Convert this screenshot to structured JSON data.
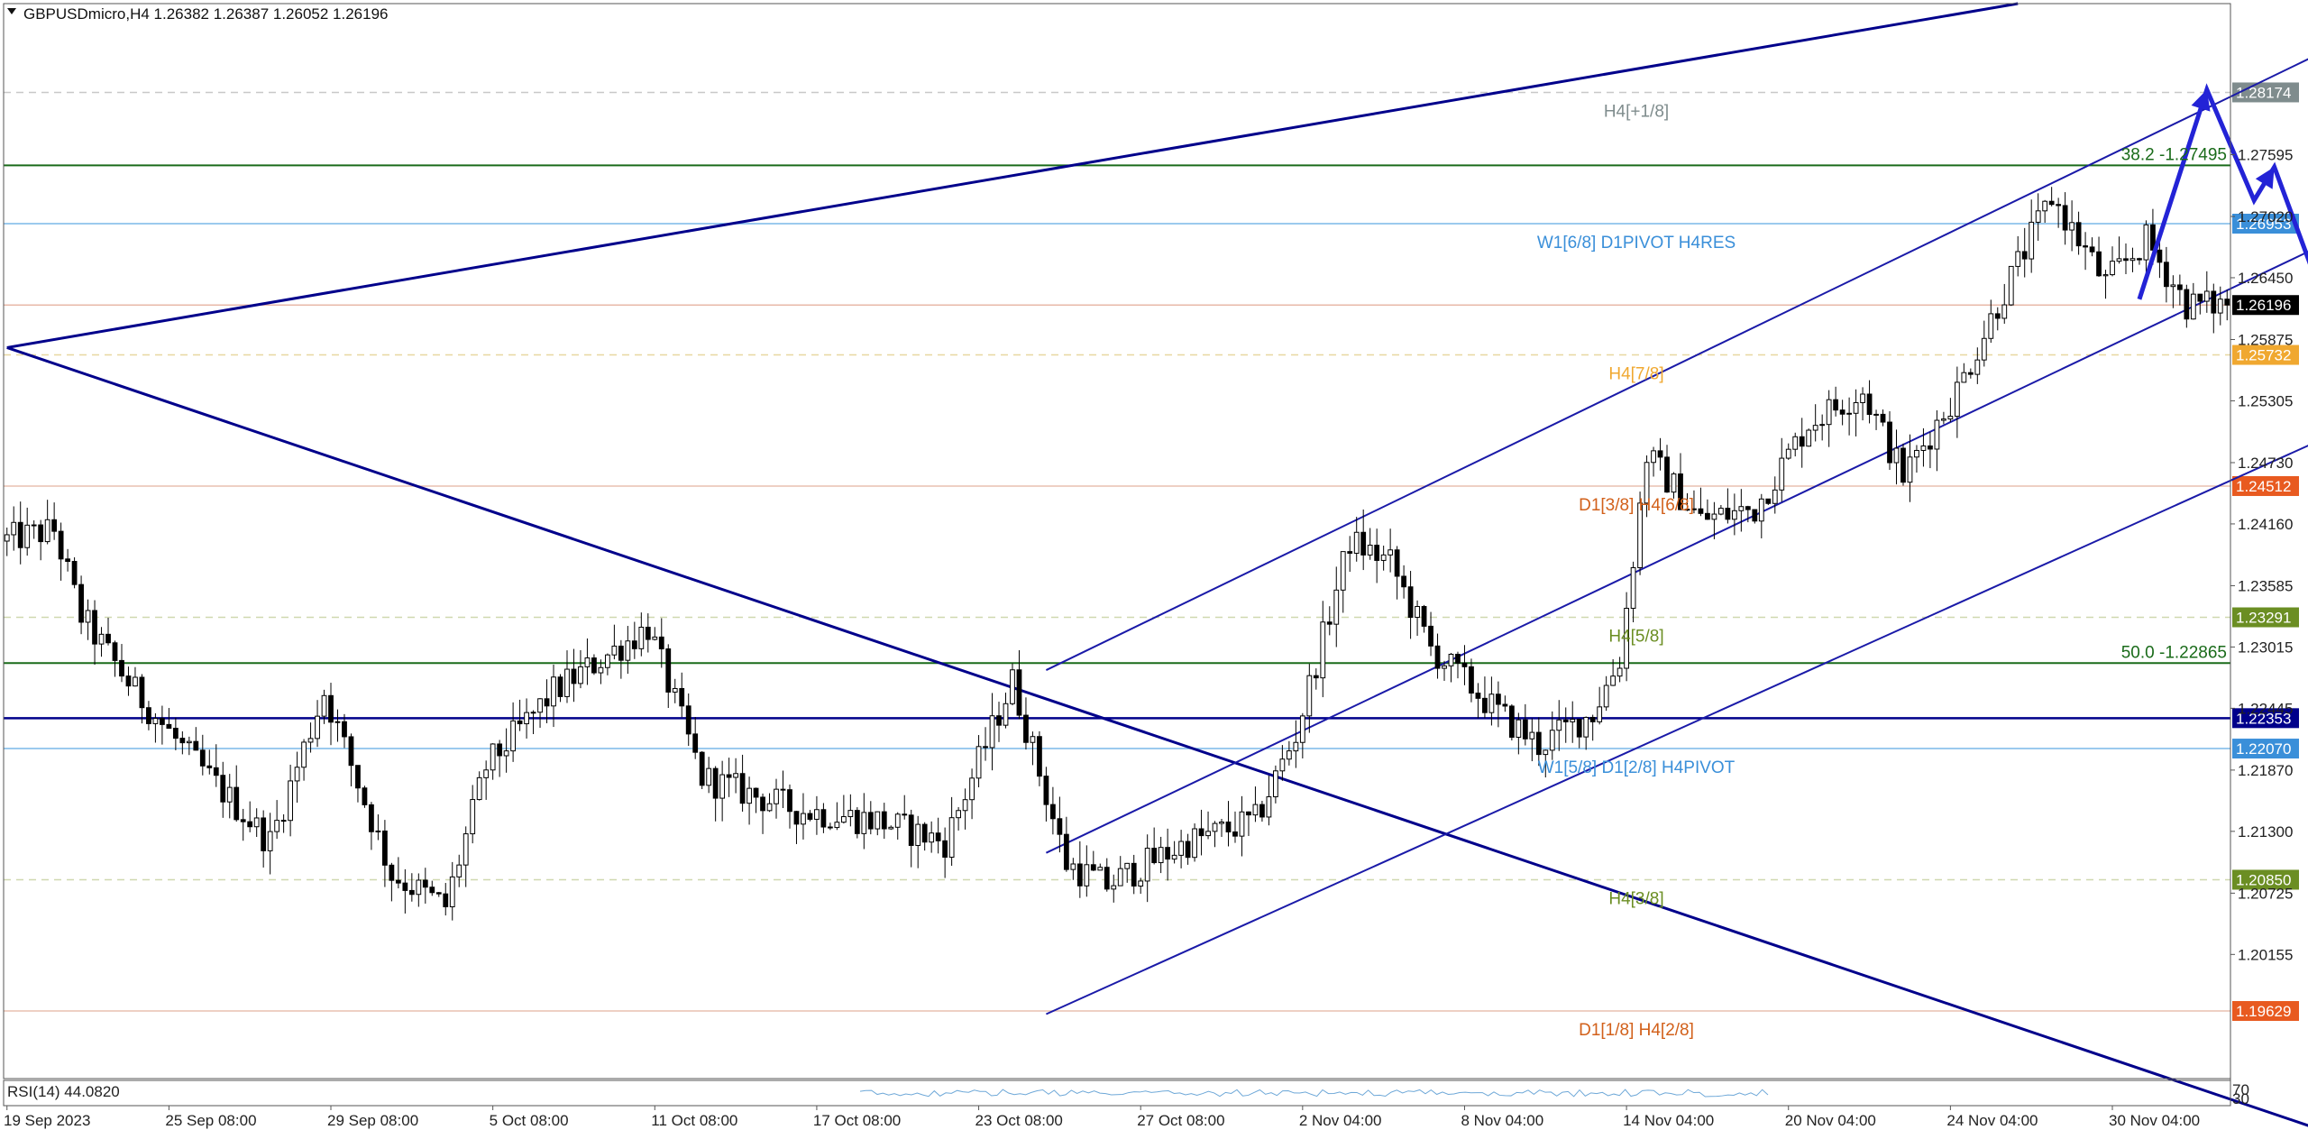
{
  "header": {
    "title": "GBPUSDmicro,H4  1.26382 1.26387 1.26052 1.26196"
  },
  "rsi": {
    "label": "RSI(14) 44.0820",
    "scale_top": "70",
    "scale_bottom": "30"
  },
  "colors": {
    "candle_up": "#ffffff",
    "candle_down": "#000000",
    "wick": "#000000",
    "trendline": "#00008b",
    "channel": "#1a1aa8",
    "arrow": "#2323d6",
    "fib": "#1a6b1a",
    "rsi_line": "#6ea8d8"
  },
  "chart_data": {
    "type": "candlestick",
    "symbol": "GBPUSDmicro",
    "timeframe": "H4",
    "ylim": [
      1.19,
      1.29
    ],
    "y_ticks": [
      "1.27595",
      "1.27020",
      "1.26450",
      "1.25875",
      "1.25305",
      "1.24730",
      "1.24160",
      "1.23585",
      "1.23015",
      "1.22445",
      "1.21870",
      "1.21300",
      "1.20725",
      "1.20155"
    ],
    "x_ticks": [
      "19 Sep 2023",
      "25 Sep 08:00",
      "29 Sep 08:00",
      "5 Oct 08:00",
      "11 Oct 08:00",
      "17 Oct 08:00",
      "23 Oct 08:00",
      "27 Oct 08:00",
      "2 Nov 04:00",
      "8 Nov 04:00",
      "14 Nov 04:00",
      "20 Nov 04:00",
      "24 Nov 04:00",
      "30 Nov 04:00"
    ],
    "x_tick_bars": [
      0,
      24,
      48,
      72,
      96,
      120,
      144,
      168,
      192,
      216,
      240,
      264,
      288,
      312
    ],
    "bars_count": 330,
    "price_path": [
      [
        0,
        1.24
      ],
      [
        8,
        1.241
      ],
      [
        12,
        1.233
      ],
      [
        20,
        1.226
      ],
      [
        28,
        1.22
      ],
      [
        40,
        1.212
      ],
      [
        48,
        1.226
      ],
      [
        58,
        1.209
      ],
      [
        66,
        1.206
      ],
      [
        72,
        1.219
      ],
      [
        82,
        1.226
      ],
      [
        96,
        1.232
      ],
      [
        104,
        1.218
      ],
      [
        118,
        1.215
      ],
      [
        130,
        1.214
      ],
      [
        140,
        1.212
      ],
      [
        150,
        1.227
      ],
      [
        158,
        1.21
      ],
      [
        164,
        1.208
      ],
      [
        176,
        1.212
      ],
      [
        186,
        1.214
      ],
      [
        192,
        1.222
      ],
      [
        200,
        1.24
      ],
      [
        206,
        1.238
      ],
      [
        212,
        1.23
      ],
      [
        222,
        1.224
      ],
      [
        228,
        1.221
      ],
      [
        236,
        1.224
      ],
      [
        240,
        1.229
      ],
      [
        244,
        1.248
      ],
      [
        252,
        1.242
      ],
      [
        260,
        1.243
      ],
      [
        268,
        1.251
      ],
      [
        276,
        1.254
      ],
      [
        282,
        1.246
      ],
      [
        290,
        1.254
      ],
      [
        296,
        1.262
      ],
      [
        304,
        1.272
      ],
      [
        312,
        1.264
      ],
      [
        318,
        1.268
      ],
      [
        324,
        1.262
      ],
      [
        329,
        1.262
      ]
    ],
    "last_price": "1.26196",
    "levels": [
      {
        "price": 1.28174,
        "tag": "1.28174",
        "tag_color": "#7f8c8d",
        "line_color": "#c8c8c8",
        "dash": true,
        "label": "H4[+1/8]",
        "label_color": "#7f8c8d"
      },
      {
        "price": 1.27495,
        "tag": "",
        "tag_color": "",
        "line_color": "#1a6b1a",
        "dash": false,
        "label": "38.2 -1.27495",
        "label_color": "#1a6b1a",
        "label_side": "right"
      },
      {
        "price": 1.26953,
        "tag": "1.26953",
        "tag_color": "#3a8fd9",
        "line_color": "#7ab8e8",
        "dash": false,
        "label": "W1[6/8] D1PIVOT H4RES",
        "label_color": "#3a8fd9"
      },
      {
        "price": 1.26196,
        "tag": "1.26196",
        "tag_color": "#000000",
        "line_color": "#e8b8a8",
        "dash": false,
        "label": "",
        "label_color": ""
      },
      {
        "price": 1.25732,
        "tag": "1.25732",
        "tag_color": "#f0a830",
        "line_color": "#e8d8a0",
        "dash": true,
        "label": "H4[7/8]",
        "label_color": "#f0a830"
      },
      {
        "price": 1.24512,
        "tag": "1.24512",
        "tag_color": "#e85a20",
        "line_color": "#e8c0b0",
        "dash": false,
        "label": "D1[3/8] H4[6/8]",
        "label_color": "#d2601a"
      },
      {
        "price": 1.23291,
        "tag": "1.23291",
        "tag_color": "#6b8e23",
        "line_color": "#cfd8b0",
        "dash": true,
        "label": "H4[5/8]",
        "label_color": "#6b8e23"
      },
      {
        "price": 1.22865,
        "tag": "",
        "tag_color": "",
        "line_color": "#1a6b1a",
        "dash": false,
        "label": "50.0 -1.22865",
        "label_color": "#1a6b1a",
        "label_side": "right"
      },
      {
        "price": 1.22353,
        "tag": "1.22353",
        "tag_color": "#00008b",
        "line_color": "#00008b",
        "dash": false,
        "label": "",
        "label_color": ""
      },
      {
        "price": 1.2207,
        "tag": "1.22070",
        "tag_color": "#3a8fd9",
        "line_color": "#7ab8e8",
        "dash": false,
        "label": "W1[5/8] D1[2/8] H4PIVOT",
        "label_color": "#3a8fd9"
      },
      {
        "price": 1.2085,
        "tag": "1.20850",
        "tag_color": "#6b8e23",
        "line_color": "#cfd8b0",
        "dash": true,
        "label": "H4[3/8]",
        "label_color": "#6b8e23"
      },
      {
        "price": 1.19629,
        "tag": "1.19629",
        "tag_color": "#e85a20",
        "line_color": "#e8c0b0",
        "dash": false,
        "label": "D1[1/8] H4[2/8]",
        "label_color": "#d2601a"
      }
    ],
    "trendlines": [
      {
        "from": [
          0,
          1.258
        ],
        "to": [
          298,
          1.29
        ],
        "role": "upper-resistance"
      },
      {
        "from": [
          0,
          1.258
        ],
        "to": [
          344,
          1.185
        ],
        "role": "descending"
      },
      {
        "from": [
          154,
          1.228
        ],
        "to": [
          358,
          1.29
        ],
        "role": "channel-upper"
      },
      {
        "from": [
          154,
          1.211
        ],
        "to": [
          358,
          1.272
        ],
        "role": "channel-middle"
      },
      {
        "from": [
          154,
          1.196
        ],
        "to": [
          398,
          1.265
        ],
        "role": "channel-lower"
      }
    ],
    "forecast_path": [
      [
        316,
        1.2625
      ],
      [
        326,
        1.282
      ],
      [
        333,
        1.2717
      ],
      [
        336,
        1.2748
      ],
      [
        346,
        1.2578
      ]
    ],
    "rsi_value": 44.082
  }
}
